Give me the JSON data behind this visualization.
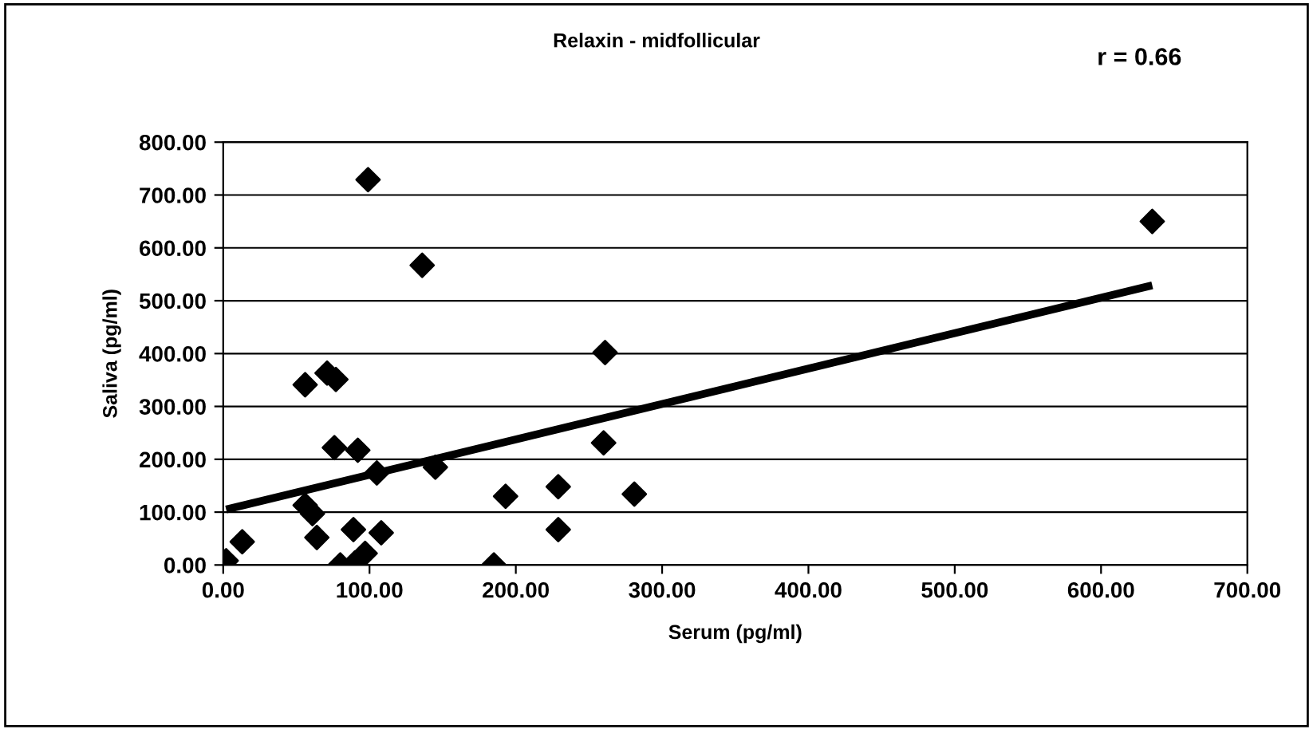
{
  "chart_data": {
    "type": "scatter",
    "title": "Relaxin - midfollicular",
    "xlabel": "Serum (pg/ml)",
    "ylabel": "Saliva (pg/ml)",
    "annotations": [
      "r = 0.66"
    ],
    "series": [
      {
        "color": "#000000",
        "marker": "diamond",
        "x": [
          2,
          13,
          56,
          71,
          77,
          76,
          92,
          105,
          145,
          56,
          61,
          64,
          89,
          108,
          80,
          90,
          97,
          99,
          136,
          193,
          185,
          261,
          260,
          229,
          281,
          229,
          635
        ],
        "values": [
          8,
          44,
          341,
          363,
          351,
          222,
          217,
          174,
          185,
          113,
          97,
          52,
          67,
          61,
          0,
          4,
          22,
          729,
          567,
          130,
          0,
          402,
          231,
          148,
          134,
          67,
          650
        ]
      },
      {
        "type": "line",
        "color": "#000000",
        "marker": "none",
        "x": [
          2,
          635
        ],
        "values": [
          105,
          529
        ]
      }
    ],
    "xlim": [
      0,
      700
    ],
    "xticks": [
      {
        "value": 0,
        "label": "0.00"
      },
      {
        "value": 100,
        "label": "100.00"
      },
      {
        "value": 200,
        "label": "200.00"
      },
      {
        "value": 300,
        "label": "300.00"
      },
      {
        "value": 400,
        "label": "400.00"
      },
      {
        "value": 500,
        "label": "500.00"
      },
      {
        "value": 600,
        "label": "600.00"
      },
      {
        "value": 700,
        "label": "700.00"
      }
    ],
    "ylim": [
      0,
      800
    ],
    "yticks": [
      {
        "value": 0,
        "label": "0.00"
      },
      {
        "value": 100,
        "label": "100.00"
      },
      {
        "value": 200,
        "label": "200.00"
      },
      {
        "value": 300,
        "label": "300.00"
      },
      {
        "value": 400,
        "label": "400.00"
      },
      {
        "value": 500,
        "label": "500.00"
      },
      {
        "value": 600,
        "label": "600.00"
      },
      {
        "value": 700,
        "label": "700.00"
      },
      {
        "value": 800,
        "label": "800.00"
      }
    ],
    "grid": "y",
    "legend": false
  }
}
